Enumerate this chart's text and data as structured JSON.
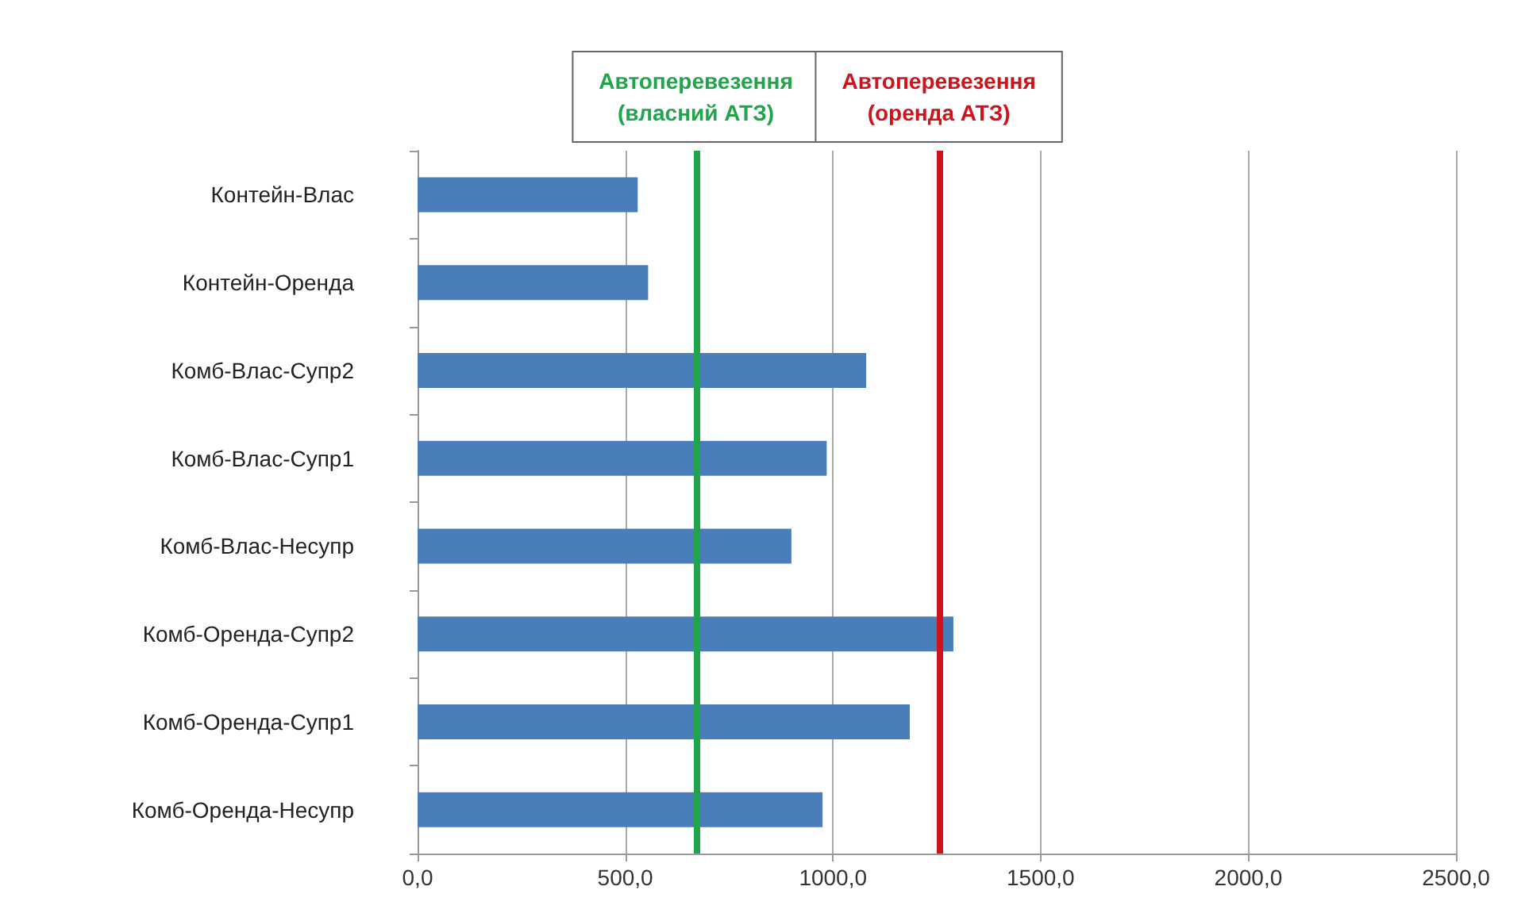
{
  "chart_data": {
    "type": "bar",
    "orientation": "horizontal",
    "categories": [
      "Контейн-Влас",
      "Контейн-Оренда",
      "Комб-Влас-Супр2",
      "Комб-Влас-Супр1",
      "Комб-Влас-Несупр",
      "Комб-Оренда-Супр2",
      "Комб-Оренда-Супр1",
      "Комб-Оренда-Несупр"
    ],
    "values": [
      530,
      555,
      1080,
      985,
      900,
      1290,
      1185,
      975
    ],
    "color": "#4a7ebb",
    "xlim": [
      0,
      2500
    ],
    "xticks": [
      {
        "value": 0,
        "label": "0,0"
      },
      {
        "value": 500,
        "label": "500,0"
      },
      {
        "value": 1000,
        "label": "1000,0"
      },
      {
        "value": 1500,
        "label": "1500,0"
      },
      {
        "value": 2000,
        "label": "2000,0"
      },
      {
        "value": 2500,
        "label": "2500,0"
      }
    ],
    "grid": "x",
    "ref_lines": [
      {
        "axis": "x",
        "value": 670,
        "label": "Автоперевезення\n(власний АТЗ)",
        "color": "#1fa64a"
      },
      {
        "axis": "x",
        "value": 1255,
        "label": "Автоперевезення\n(оренда АТЗ)",
        "color": "#d0121b"
      }
    ]
  }
}
